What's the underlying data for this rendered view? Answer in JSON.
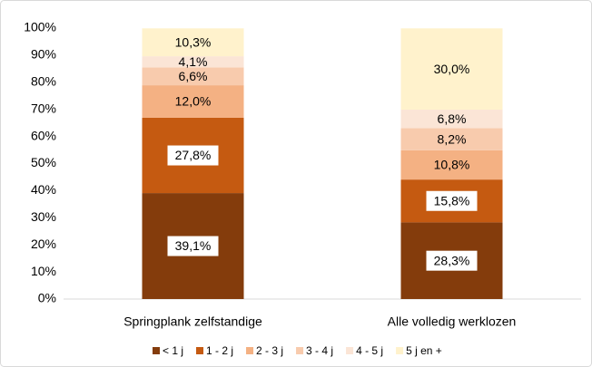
{
  "chart_data": {
    "type": "stacked_bar",
    "categories": [
      "Springplank zelfstandige",
      "Alle volledig werklozen"
    ],
    "series": [
      {
        "name": "< 1 j",
        "color": "#843c0c",
        "values": [
          39.1,
          28.3
        ],
        "value_labels": [
          "39,1%",
          "28,3%"
        ]
      },
      {
        "name": "1 - 2 j",
        "color": "#c55a11",
        "values": [
          27.8,
          15.8
        ],
        "value_labels": [
          "27,8%",
          "15,8%"
        ]
      },
      {
        "name": "2 - 3 j",
        "color": "#f4b183",
        "values": [
          12.0,
          10.8
        ],
        "value_labels": [
          "12,0%",
          "10,8%"
        ]
      },
      {
        "name": "3 - 4 j",
        "color": "#f8cbad",
        "values": [
          6.6,
          8.2
        ],
        "value_labels": [
          "6,6%",
          "8,2%"
        ]
      },
      {
        "name": "4 - 5 j",
        "color": "#fbe5d6",
        "values": [
          4.1,
          6.8
        ],
        "value_labels": [
          "4,1%",
          "6,8%"
        ]
      },
      {
        "name": "5 j en +",
        "color": "#fff2cc",
        "values": [
          10.3,
          30.0
        ],
        "value_labels": [
          "10,3%",
          "30,0%"
        ]
      }
    ],
    "ylim": [
      0,
      100
    ],
    "yticks": [
      {
        "value": 0,
        "label": "0%"
      },
      {
        "value": 10,
        "label": "10%"
      },
      {
        "value": 20,
        "label": "20%"
      },
      {
        "value": 30,
        "label": "30%"
      },
      {
        "value": 40,
        "label": "40%"
      },
      {
        "value": 50,
        "label": "50%"
      },
      {
        "value": 60,
        "label": "60%"
      },
      {
        "value": 70,
        "label": "70%"
      },
      {
        "value": 80,
        "label": "80%"
      },
      {
        "value": 90,
        "label": "90%"
      },
      {
        "value": 100,
        "label": "100%"
      }
    ],
    "grid": false,
    "legend": "bottom"
  }
}
